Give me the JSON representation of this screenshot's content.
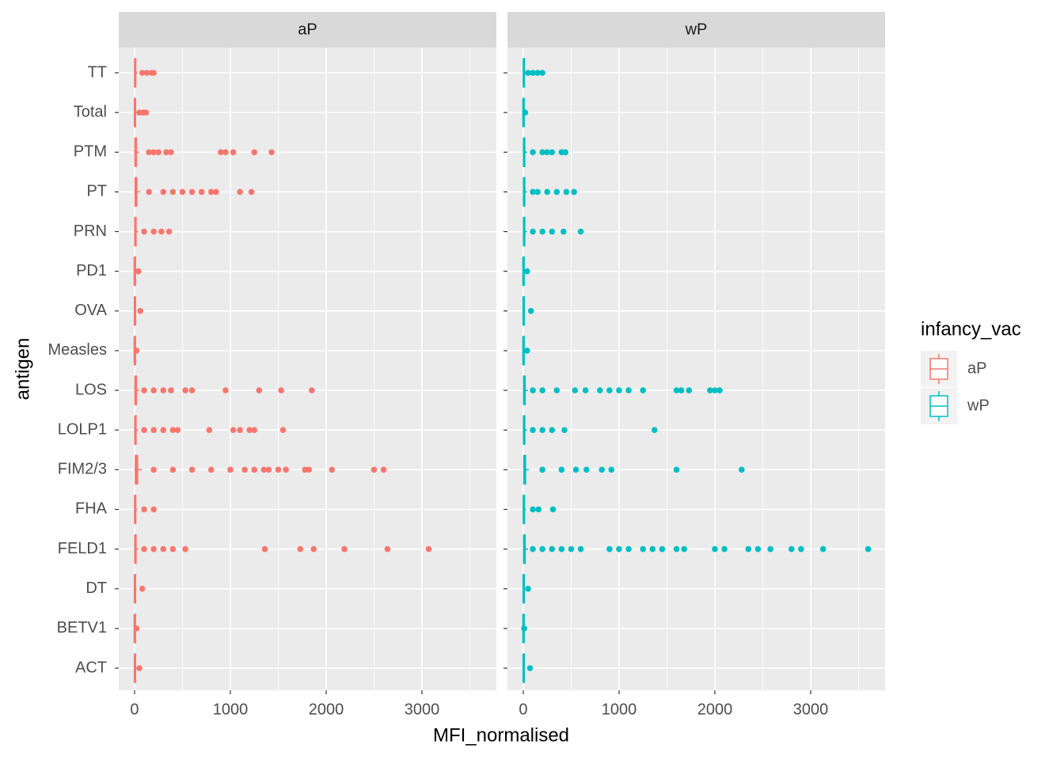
{
  "chart_data": {
    "type": "box",
    "x_label": "MFI_normalised",
    "y_label": "antigen",
    "legend_title": "infancy_vac",
    "categories": [
      "TT",
      "Total",
      "PTM",
      "PT",
      "PRN",
      "PD1",
      "OVA",
      "Measles",
      "LOS",
      "LOLP1",
      "FIM2/3",
      "FHA",
      "FELD1",
      "DT",
      "BETV1",
      "ACT"
    ],
    "xlim": [
      -165,
      3777
    ],
    "xticks": [
      0,
      1000,
      2000,
      3000
    ],
    "minor_xticks": [
      500,
      1500,
      2500,
      3500
    ],
    "grid": true,
    "legend_position": "right",
    "facets": [
      {
        "name": "aP",
        "color": "#F8766D",
        "whisker_low": [
          0,
          0,
          0,
          0,
          0,
          0,
          0,
          0,
          0,
          0,
          0,
          0,
          0,
          0,
          0,
          0
        ],
        "q1": [
          3,
          2,
          5,
          5,
          4,
          1,
          2,
          1,
          5,
          4,
          8,
          3,
          4,
          2,
          1,
          2
        ],
        "median": [
          6,
          4,
          10,
          12,
          8,
          2,
          4,
          2,
          10,
          8,
          16,
          6,
          8,
          4,
          2,
          4
        ],
        "q3": [
          12,
          8,
          20,
          24,
          16,
          4,
          8,
          3,
          20,
          16,
          32,
          12,
          16,
          8,
          3,
          8
        ],
        "whisker_high": [
          30,
          20,
          50,
          60,
          40,
          10,
          20,
          8,
          50,
          40,
          80,
          30,
          40,
          20,
          8,
          20
        ],
        "outliers": [
          [
            80,
            130,
            180,
            200
          ],
          [
            50,
            90,
            120
          ],
          [
            150,
            200,
            250,
            330,
            380,
            900,
            950,
            1030,
            1250,
            1430
          ],
          [
            150,
            300,
            400,
            500,
            600,
            700,
            800,
            850,
            1100,
            1220
          ],
          [
            100,
            200,
            280,
            360
          ],
          [
            40
          ],
          [
            60
          ],
          [
            20
          ],
          [
            100,
            200,
            300,
            380,
            530,
            600,
            950,
            1300,
            1530,
            1850
          ],
          [
            100,
            200,
            300,
            400,
            450,
            780,
            1030,
            1100,
            1200,
            1250,
            1550
          ],
          [
            200,
            400,
            600,
            800,
            1000,
            1150,
            1250,
            1350,
            1400,
            1500,
            1580,
            1780,
            1820,
            2060,
            2500,
            2600
          ],
          [
            100,
            200
          ],
          [
            100,
            200,
            300,
            400,
            530,
            1360,
            1730,
            1870,
            2190,
            2640,
            3070
          ],
          [
            80
          ],
          [
            20
          ],
          [
            50
          ]
        ]
      },
      {
        "name": "wP",
        "color": "#00BFC4",
        "whisker_low": [
          0,
          0,
          0,
          0,
          0,
          0,
          0,
          0,
          0,
          0,
          0,
          0,
          0,
          0,
          0,
          0
        ],
        "q1": [
          3,
          1,
          4,
          4,
          4,
          1,
          2,
          1,
          5,
          4,
          6,
          3,
          5,
          2,
          1,
          2
        ],
        "median": [
          6,
          2,
          8,
          8,
          8,
          2,
          4,
          2,
          10,
          8,
          12,
          6,
          10,
          4,
          2,
          4
        ],
        "q3": [
          12,
          4,
          16,
          16,
          16,
          4,
          8,
          4,
          20,
          16,
          24,
          12,
          20,
          8,
          3,
          8
        ],
        "whisker_high": [
          30,
          10,
          40,
          40,
          40,
          10,
          20,
          10,
          50,
          40,
          60,
          30,
          50,
          20,
          6,
          20
        ],
        "outliers": [
          [
            50,
            100,
            150,
            200
          ],
          [
            20
          ],
          [
            100,
            200,
            250,
            300,
            400,
            440
          ],
          [
            100,
            150,
            250,
            350,
            450,
            530
          ],
          [
            100,
            200,
            300,
            420,
            600
          ],
          [
            40
          ],
          [
            80
          ],
          [
            40
          ],
          [
            100,
            200,
            350,
            540,
            650,
            800,
            900,
            1000,
            1100,
            1250,
            1600,
            1650,
            1730,
            1950,
            2000,
            2050
          ],
          [
            100,
            200,
            300,
            430,
            1370
          ],
          [
            200,
            400,
            550,
            660,
            820,
            920,
            1600,
            2280
          ],
          [
            100,
            160,
            310
          ],
          [
            100,
            200,
            300,
            400,
            500,
            600,
            900,
            1000,
            1100,
            1250,
            1350,
            1450,
            1600,
            1680,
            2000,
            2100,
            2350,
            2450,
            2580,
            2800,
            2900,
            3130,
            3600
          ],
          [
            50
          ],
          [
            10
          ],
          [
            70
          ]
        ]
      }
    ]
  }
}
